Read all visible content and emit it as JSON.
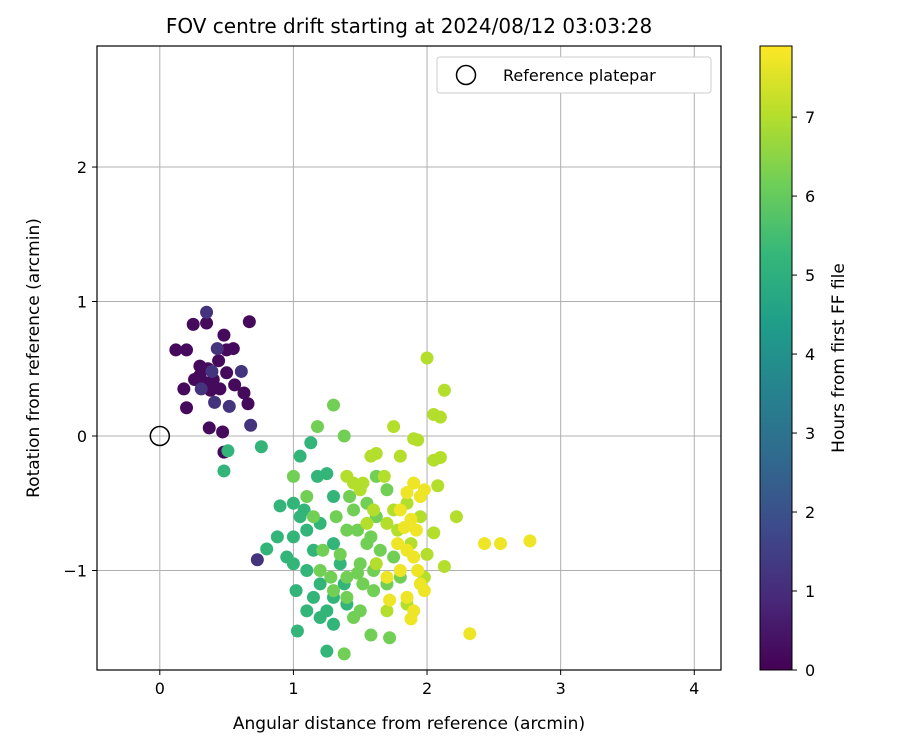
{
  "chart_data": {
    "type": "scatter",
    "title": "FOV centre drift starting at 2024/08/12 03:03:28",
    "xlabel": "Angular distance from reference (arcmin)",
    "ylabel": "Rotation from reference (arcmin)",
    "xlim": [
      -0.47,
      4.2
    ],
    "ylim": [
      -1.74,
      2.9
    ],
    "xticks": [
      "0",
      "1",
      "2",
      "3",
      "4"
    ],
    "yticks": [
      "−1",
      "0",
      "1",
      "2"
    ],
    "grid": true,
    "legend": {
      "placement": "top-right",
      "entries": [
        "Reference platepar"
      ]
    },
    "reference_point": {
      "x": 0.0,
      "y": 0.0,
      "label": "Reference platepar"
    },
    "colorbar": {
      "label": "Hours from first FF file",
      "range": [
        0,
        7.9
      ],
      "ticks": [
        "0",
        "1",
        "2",
        "3",
        "4",
        "5",
        "6",
        "7"
      ],
      "colormap": "viridis"
    },
    "colormap_stops": [
      "#440154",
      "#482878",
      "#3e4989",
      "#31688e",
      "#26828e",
      "#1f9e89",
      "#35b779",
      "#6ece58",
      "#b5de2b",
      "#fde725"
    ],
    "series": [
      {
        "hour": 0.2,
        "points": [
          [
            0.25,
            0.83
          ],
          [
            0.35,
            0.84
          ],
          [
            0.48,
            0.75
          ],
          [
            0.67,
            0.85
          ],
          [
            0.12,
            0.64
          ],
          [
            0.2,
            0.64
          ],
          [
            0.3,
            0.52
          ],
          [
            0.36,
            0.5
          ],
          [
            0.4,
            0.42
          ],
          [
            0.44,
            0.56
          ],
          [
            0.5,
            0.64
          ],
          [
            0.55,
            0.65
          ],
          [
            0.18,
            0.35
          ],
          [
            0.26,
            0.42
          ],
          [
            0.33,
            0.4
          ],
          [
            0.38,
            0.34
          ],
          [
            0.45,
            0.35
          ],
          [
            0.5,
            0.47
          ],
          [
            0.63,
            0.32
          ],
          [
            0.66,
            0.24
          ],
          [
            0.2,
            0.21
          ],
          [
            0.37,
            0.06
          ],
          [
            0.47,
            0.03
          ],
          [
            0.48,
            -0.12
          ],
          [
            0.56,
            0.38
          ],
          [
            0.3,
            0.45
          ]
        ]
      },
      {
        "hour": 1.2,
        "points": [
          [
            0.35,
            0.92
          ],
          [
            0.43,
            0.65
          ],
          [
            0.61,
            0.48
          ],
          [
            0.41,
            0.25
          ],
          [
            0.52,
            0.22
          ],
          [
            0.68,
            0.08
          ],
          [
            0.73,
            -0.92
          ],
          [
            0.31,
            0.35
          ],
          [
            0.39,
            0.48
          ]
        ]
      },
      {
        "hour": 5.2,
        "points": [
          [
            0.48,
            -0.26
          ],
          [
            0.51,
            -0.11
          ],
          [
            0.76,
            -0.08
          ],
          [
            0.8,
            -0.84
          ],
          [
            0.9,
            -0.52
          ],
          [
            1.0,
            -0.5
          ],
          [
            1.05,
            -0.6
          ],
          [
            1.1,
            -0.7
          ],
          [
            1.2,
            -0.65
          ],
          [
            1.3,
            -0.8
          ],
          [
            1.0,
            -0.95
          ],
          [
            1.1,
            -1.0
          ],
          [
            1.2,
            -1.1
          ],
          [
            1.3,
            -1.2
          ],
          [
            1.4,
            -1.25
          ],
          [
            1.1,
            -1.3
          ],
          [
            1.2,
            -1.35
          ],
          [
            1.3,
            -1.4
          ],
          [
            1.03,
            -1.45
          ],
          [
            1.25,
            -1.6
          ],
          [
            1.13,
            -0.05
          ],
          [
            1.05,
            -0.15
          ],
          [
            1.18,
            -0.3
          ],
          [
            1.25,
            -0.28
          ],
          [
            1.3,
            -0.45
          ],
          [
            1.0,
            -0.75
          ],
          [
            0.95,
            -0.9
          ],
          [
            1.15,
            -0.85
          ],
          [
            1.35,
            -0.95
          ],
          [
            1.02,
            -1.15
          ],
          [
            1.15,
            -1.2
          ],
          [
            1.25,
            -1.3
          ],
          [
            1.38,
            -1.1
          ],
          [
            0.88,
            -0.75
          ],
          [
            1.08,
            -0.55
          ]
        ]
      },
      {
        "hour": 6.2,
        "points": [
          [
            1.18,
            0.07
          ],
          [
            1.3,
            0.23
          ],
          [
            1.38,
            0.0
          ],
          [
            1.1,
            -0.45
          ],
          [
            1.15,
            -0.6
          ],
          [
            1.22,
            -0.85
          ],
          [
            1.32,
            -0.6
          ],
          [
            1.4,
            -0.7
          ],
          [
            1.45,
            -0.55
          ],
          [
            1.5,
            -0.95
          ],
          [
            1.55,
            -0.8
          ],
          [
            1.6,
            -1.0
          ],
          [
            1.4,
            -1.2
          ],
          [
            1.5,
            -1.3
          ],
          [
            1.6,
            -1.15
          ],
          [
            1.7,
            -1.1
          ],
          [
            1.58,
            -1.48
          ],
          [
            1.72,
            -1.5
          ],
          [
            1.38,
            -1.62
          ],
          [
            1.2,
            -1.0
          ],
          [
            1.28,
            -1.05
          ],
          [
            1.35,
            -0.88
          ],
          [
            1.42,
            -0.45
          ],
          [
            1.48,
            -0.7
          ],
          [
            1.55,
            -0.5
          ],
          [
            1.62,
            -0.6
          ],
          [
            1.7,
            -0.4
          ],
          [
            1.75,
            -0.9
          ],
          [
            1.8,
            -1.05
          ],
          [
            1.65,
            -0.85
          ],
          [
            1.52,
            -1.1
          ],
          [
            1.45,
            -1.35
          ],
          [
            1.3,
            -1.15
          ],
          [
            1.62,
            -0.3
          ],
          [
            1.4,
            -1.05
          ],
          [
            1.0,
            -0.3
          ],
          [
            1.48,
            -1.02
          ],
          [
            1.58,
            -0.75
          ]
        ]
      },
      {
        "hour": 7.0,
        "points": [
          [
            2.0,
            0.58
          ],
          [
            2.13,
            0.34
          ],
          [
            2.05,
            0.16
          ],
          [
            2.1,
            0.14
          ],
          [
            1.75,
            0.07
          ],
          [
            1.9,
            -0.02
          ],
          [
            1.93,
            -0.03
          ],
          [
            1.58,
            -0.15
          ],
          [
            1.62,
            -0.13
          ],
          [
            1.8,
            -0.15
          ],
          [
            2.05,
            -0.18
          ],
          [
            2.1,
            -0.16
          ],
          [
            1.45,
            -0.35
          ],
          [
            1.5,
            -0.4
          ],
          [
            1.6,
            -0.55
          ],
          [
            1.7,
            -0.65
          ],
          [
            1.78,
            -0.7
          ],
          [
            1.85,
            -0.5
          ],
          [
            1.95,
            -0.6
          ],
          [
            2.05,
            -0.72
          ],
          [
            2.22,
            -0.6
          ],
          [
            2.0,
            -0.88
          ],
          [
            2.13,
            -0.97
          ],
          [
            1.85,
            -1.25
          ],
          [
            1.7,
            -1.3
          ],
          [
            1.98,
            -1.05
          ],
          [
            1.75,
            -0.55
          ],
          [
            1.55,
            -0.65
          ],
          [
            1.4,
            -0.3
          ],
          [
            2.08,
            -0.37
          ],
          [
            1.68,
            -0.3
          ],
          [
            1.88,
            -0.8
          ],
          [
            1.62,
            -0.95
          ],
          [
            1.52,
            -0.35
          ]
        ]
      },
      {
        "hour": 7.7,
        "points": [
          [
            1.85,
            -0.42
          ],
          [
            1.9,
            -0.35
          ],
          [
            1.95,
            -0.45
          ],
          [
            1.98,
            -0.4
          ],
          [
            1.8,
            -0.55
          ],
          [
            1.88,
            -0.62
          ],
          [
            1.92,
            -0.7
          ],
          [
            1.78,
            -0.8
          ],
          [
            1.85,
            -0.85
          ],
          [
            1.9,
            -0.9
          ],
          [
            1.8,
            -1.0
          ],
          [
            1.95,
            -1.1
          ],
          [
            1.85,
            -1.2
          ],
          [
            1.9,
            -1.3
          ],
          [
            1.88,
            -1.36
          ],
          [
            2.43,
            -0.8
          ],
          [
            2.55,
            -0.8
          ],
          [
            2.77,
            -0.78
          ],
          [
            2.32,
            -1.47
          ],
          [
            1.72,
            -1.22
          ],
          [
            1.98,
            -1.15
          ],
          [
            1.7,
            -1.05
          ],
          [
            1.83,
            -0.68
          ],
          [
            1.93,
            -1.0
          ]
        ]
      }
    ]
  }
}
